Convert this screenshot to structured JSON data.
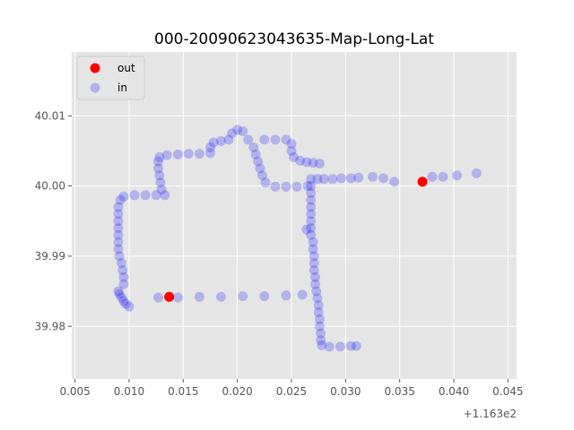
{
  "chart_data": {
    "type": "scatter",
    "title": "000-20090623043635-Map-Long-Lat",
    "xlabel": "",
    "ylabel": "",
    "x_offset_label": "+1.163e2",
    "xlim": [
      116.3047,
      116.3458
    ],
    "ylim": [
      39.9725,
      40.0191
    ],
    "x_ticks": [
      116.305,
      116.31,
      116.315,
      116.32,
      116.325,
      116.33,
      116.335,
      116.34,
      116.345
    ],
    "x_tick_labels": [
      "0.005",
      "0.010",
      "0.015",
      "0.020",
      "0.025",
      "0.030",
      "0.035",
      "0.040",
      "0.045"
    ],
    "y_ticks": [
      39.98,
      39.99,
      40.0,
      40.01
    ],
    "y_tick_labels": [
      "39.98",
      "39.99",
      "40.00",
      "40.01"
    ],
    "grid": true,
    "legend_position": "top-left",
    "colors": {
      "axes_bg": "#e5e5e5",
      "grid": "#ffffff",
      "out": "#ff0000",
      "in": "#0000ff"
    },
    "series": [
      {
        "name": "out",
        "color": "#ff0000",
        "points": [
          [
            116.3137,
            39.9842
          ],
          [
            116.3371,
            40.0006
          ]
        ]
      },
      {
        "name": "in",
        "color": "#0000ff",
        "points": [
          [
            116.3127,
            39.9841
          ],
          [
            116.3145,
            39.9841
          ],
          [
            116.3165,
            39.9842
          ],
          [
            116.3185,
            39.9842
          ],
          [
            116.3205,
            39.9843
          ],
          [
            116.3225,
            39.9843
          ],
          [
            116.3245,
            39.9844
          ],
          [
            116.326,
            39.9845
          ],
          [
            116.31,
            39.9828
          ],
          [
            116.3097,
            39.9832
          ],
          [
            116.3095,
            39.9836
          ],
          [
            116.3093,
            39.9841
          ],
          [
            116.3091,
            39.9846
          ],
          [
            116.309,
            39.985
          ],
          [
            116.3095,
            39.986
          ],
          [
            116.3095,
            39.987
          ],
          [
            116.3094,
            39.988
          ],
          [
            116.3093,
            39.989
          ],
          [
            116.3091,
            39.99
          ],
          [
            116.309,
            39.991
          ],
          [
            116.309,
            39.992
          ],
          [
            116.309,
            39.993
          ],
          [
            116.309,
            39.994
          ],
          [
            116.309,
            39.995
          ],
          [
            116.309,
            39.996
          ],
          [
            116.309,
            39.997
          ],
          [
            116.3092,
            39.998
          ],
          [
            116.3095,
            39.9985
          ],
          [
            116.3105,
            39.9987
          ],
          [
            116.3115,
            39.9987
          ],
          [
            116.3125,
            39.9987
          ],
          [
            116.3133,
            39.9987
          ],
          [
            116.313,
            39.9995
          ],
          [
            116.3129,
            40.0005
          ],
          [
            116.3128,
            40.0015
          ],
          [
            116.3127,
            40.0025
          ],
          [
            116.3127,
            40.0035
          ],
          [
            116.3128,
            40.0041
          ],
          [
            116.3135,
            40.0044
          ],
          [
            116.3145,
            40.0045
          ],
          [
            116.3155,
            40.0046
          ],
          [
            116.3165,
            40.0046
          ],
          [
            116.3175,
            40.0047
          ],
          [
            116.3175,
            40.0055
          ],
          [
            116.3178,
            40.0062
          ],
          [
            116.3185,
            40.0064
          ],
          [
            116.3192,
            40.0066
          ],
          [
            116.3195,
            40.0075
          ],
          [
            116.32,
            40.008
          ],
          [
            116.3205,
            40.0078
          ],
          [
            116.321,
            40.0066
          ],
          [
            116.3215,
            40.0055
          ],
          [
            116.3217,
            40.0045
          ],
          [
            116.3219,
            40.0035
          ],
          [
            116.3221,
            40.0025
          ],
          [
            116.3223,
            40.0015
          ],
          [
            116.3226,
            40.0005
          ],
          [
            116.3235,
            39.9999
          ],
          [
            116.3245,
            39.9999
          ],
          [
            116.3255,
            39.9999
          ],
          [
            116.3265,
            40.0
          ],
          [
            116.3225,
            40.0066
          ],
          [
            116.3235,
            40.0066
          ],
          [
            116.3245,
            40.0066
          ],
          [
            116.325,
            40.006
          ],
          [
            116.325,
            40.005
          ],
          [
            116.3252,
            40.0041
          ],
          [
            116.3258,
            40.0036
          ],
          [
            116.3264,
            40.0034
          ],
          [
            116.327,
            40.0033
          ],
          [
            116.3276,
            40.0032
          ],
          [
            116.3268,
            40.001
          ],
          [
            116.3274,
            40.001
          ],
          [
            116.328,
            40.001
          ],
          [
            116.3288,
            40.001
          ],
          [
            116.3296,
            40.0011
          ],
          [
            116.3305,
            40.0011
          ],
          [
            116.3312,
            40.0012
          ],
          [
            116.3325,
            40.0013
          ],
          [
            116.3335,
            40.0011
          ],
          [
            116.3345,
            40.0006
          ],
          [
            116.338,
            40.0013
          ],
          [
            116.339,
            40.0013
          ],
          [
            116.3403,
            40.0015
          ],
          [
            116.3421,
            40.0018
          ],
          [
            116.3268,
            40.0
          ],
          [
            116.3268,
            39.999
          ],
          [
            116.3268,
            39.998
          ],
          [
            116.3268,
            39.997
          ],
          [
            116.3268,
            39.996
          ],
          [
            116.3268,
            39.995
          ],
          [
            116.3268,
            39.994
          ],
          [
            116.3264,
            39.9938
          ],
          [
            116.3268,
            39.993
          ],
          [
            116.327,
            39.992
          ],
          [
            116.327,
            39.991
          ],
          [
            116.3271,
            39.99
          ],
          [
            116.3271,
            39.989
          ],
          [
            116.3271,
            39.988
          ],
          [
            116.3272,
            39.987
          ],
          [
            116.3272,
            39.986
          ],
          [
            116.3273,
            39.985
          ],
          [
            116.3274,
            39.984
          ],
          [
            116.3275,
            39.983
          ],
          [
            116.3275,
            39.982
          ],
          [
            116.3276,
            39.981
          ],
          [
            116.3276,
            39.98
          ],
          [
            116.3277,
            39.979
          ],
          [
            116.3277,
            39.978
          ],
          [
            116.3278,
            39.9773
          ],
          [
            116.3285,
            39.9771
          ],
          [
            116.3295,
            39.9771
          ],
          [
            116.3305,
            39.9772
          ],
          [
            116.331,
            39.9772
          ]
        ]
      }
    ]
  }
}
